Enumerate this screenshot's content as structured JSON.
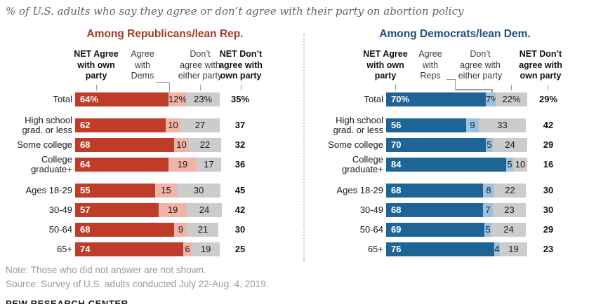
{
  "title": "% of U.S. adults who say they agree or don’t agree with their party on abortion policy",
  "note": "Note: Those who did not answer are not shown.",
  "source": "Source: Survey of U.S. adults conducted July 22-Aug. 4, 2019.",
  "footer_brand": "PEW RESEARCH CENTER",
  "colors": {
    "rep_bar": "#bf3c28",
    "rep_bar_light": "#f2b3a7",
    "rep_title": "#a03b28",
    "dem_bar": "#1e6496",
    "dem_bar_light": "#9cc2e1",
    "dem_title": "#1f4e79",
    "neutral_bar": "#cccccc",
    "connector_gray": "#9a9a9a"
  },
  "chart_data": [
    {
      "type": "bar",
      "stacked": true,
      "title": "Among Republicans/lean Rep.",
      "title_color": "#a03b28",
      "bar_color": "#bf3c28",
      "bar_color_light": "#f2b3a7",
      "neutral_color": "#cccccc",
      "legend_position": "top-column-headers",
      "grid": false,
      "xlim": [
        0,
        100
      ],
      "columns": [
        "NET Agree\nwith own\nparty",
        "Agree\nwith\nDems",
        "Don’t\nagree with\neither party",
        "NET Don’t\nagree with\nown party"
      ],
      "categories": [
        "Total",
        "High school\ngrad. or less",
        "Some college",
        "College\ngraduate+",
        "Ages 18-29",
        "30-49",
        "50-64",
        "65+"
      ],
      "series": [
        {
          "name": "NET Agree with own party",
          "values": [
            64,
            62,
            68,
            64,
            55,
            57,
            68,
            74
          ]
        },
        {
          "name": "Agree with Dems",
          "values": [
            12,
            10,
            10,
            19,
            15,
            19,
            9,
            6
          ]
        },
        {
          "name": "Don't agree with either party",
          "values": [
            23,
            27,
            22,
            17,
            30,
            24,
            21,
            19
          ]
        },
        {
          "name": "NET Don't agree with own party",
          "values": [
            35,
            37,
            32,
            36,
            45,
            42,
            30,
            25
          ]
        }
      ],
      "value_labels": [
        [
          "64%",
          "62",
          "68",
          "64",
          "55",
          "57",
          "68",
          "74"
        ],
        [
          "12%",
          "10",
          "10",
          "19",
          "15",
          "19",
          "9",
          "6"
        ],
        [
          "23%",
          "27",
          "22",
          "17",
          "30",
          "24",
          "21",
          "19"
        ],
        [
          "35%",
          "37",
          "32",
          "36",
          "45",
          "42",
          "30",
          "25"
        ]
      ]
    },
    {
      "type": "bar",
      "stacked": true,
      "title": "Among Democrats/lean Dem.",
      "title_color": "#1f4e79",
      "bar_color": "#1e6496",
      "bar_color_light": "#9cc2e1",
      "neutral_color": "#cccccc",
      "legend_position": "top-column-headers",
      "grid": false,
      "xlim": [
        0,
        100
      ],
      "columns": [
        "NET Agree\nwith own\nparty",
        "Agree\nwith\nReps",
        "Don’t\nagree with\neither party",
        "NET Don’t\nagree with\nown party"
      ],
      "categories": [
        "Total",
        "High school\ngrad. or less",
        "Some college",
        "College\ngraduate+",
        "Ages 18-29",
        "30-49",
        "50-64",
        "65+"
      ],
      "series": [
        {
          "name": "NET Agree with own party",
          "values": [
            70,
            56,
            70,
            84,
            68,
            68,
            69,
            76
          ]
        },
        {
          "name": "Agree with Reps",
          "values": [
            7,
            9,
            5,
            5,
            8,
            7,
            5,
            4
          ]
        },
        {
          "name": "Don't agree with either party",
          "values": [
            22,
            33,
            24,
            10,
            22,
            23,
            24,
            19
          ]
        },
        {
          "name": "NET Don't agree with own party",
          "values": [
            29,
            42,
            29,
            16,
            30,
            30,
            29,
            23
          ]
        }
      ],
      "value_labels": [
        [
          "70%",
          "56",
          "70",
          "84",
          "68",
          "68",
          "69",
          "76"
        ],
        [
          "7%",
          "9",
          "5",
          "5",
          "8",
          "7",
          "5",
          "4"
        ],
        [
          "22%",
          "33",
          "24",
          "10",
          "22",
          "23",
          "24",
          "19"
        ],
        [
          "29%",
          "42",
          "29",
          "16",
          "30",
          "30",
          "29",
          "23"
        ]
      ]
    }
  ]
}
